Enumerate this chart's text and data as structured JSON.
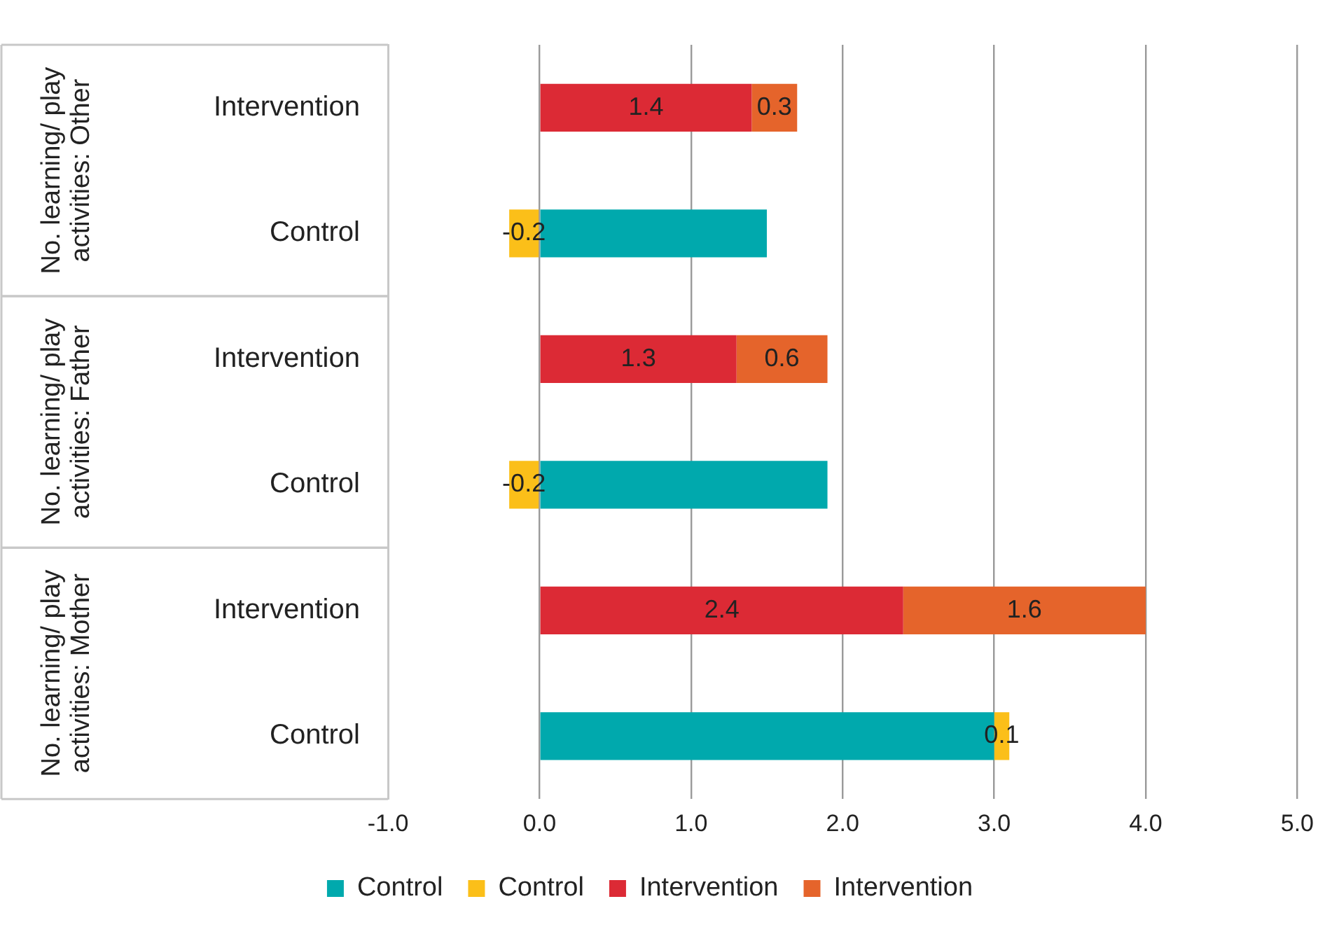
{
  "chart_data": {
    "type": "bar",
    "orientation": "horizontal",
    "stacked": true,
    "categories": [
      "Intervention",
      "Control",
      "Intervention",
      "Control",
      "Intervention",
      "Control"
    ],
    "series": [
      {
        "name": "Control",
        "color": "#00a9ad",
        "values": [
          null,
          1.5,
          null,
          1.9,
          null,
          3.0
        ]
      },
      {
        "name": "Control",
        "color": "#fbbf19",
        "values": [
          null,
          -0.2,
          null,
          -0.2,
          null,
          0.1
        ],
        "value_labels": [
          null,
          "-0.2",
          null,
          "-0.2",
          null,
          "0.1"
        ]
      },
      {
        "name": "Intervention",
        "color": "#dc2a35",
        "values": [
          1.4,
          null,
          1.3,
          null,
          2.4,
          null
        ],
        "value_labels": [
          "1.4",
          null,
          "1.3",
          null,
          "2.4",
          null
        ]
      },
      {
        "name": "Intervention",
        "color": "#e5642b",
        "values": [
          0.3,
          null,
          0.6,
          null,
          1.6,
          null
        ],
        "value_labels": [
          "0.3",
          null,
          "0.6",
          null,
          "1.6",
          null
        ]
      }
    ],
    "xlim": [
      -1,
      5
    ],
    "xticks": [
      {
        "value": -1,
        "label": "-1.0"
      },
      {
        "value": 0,
        "label": "0.0"
      },
      {
        "value": 1,
        "label": "1.0"
      },
      {
        "value": 2,
        "label": "2.0"
      },
      {
        "value": 3,
        "label": "3.0"
      },
      {
        "value": 4,
        "label": "4.0"
      },
      {
        "value": 5,
        "label": "5.0"
      }
    ],
    "grid": "x",
    "legend": "bottom",
    "annotations": [
      "No. learning/ play activities: Other",
      "No. learning/ play activities: Father",
      "No. learning/ play activities: Mother"
    ]
  }
}
